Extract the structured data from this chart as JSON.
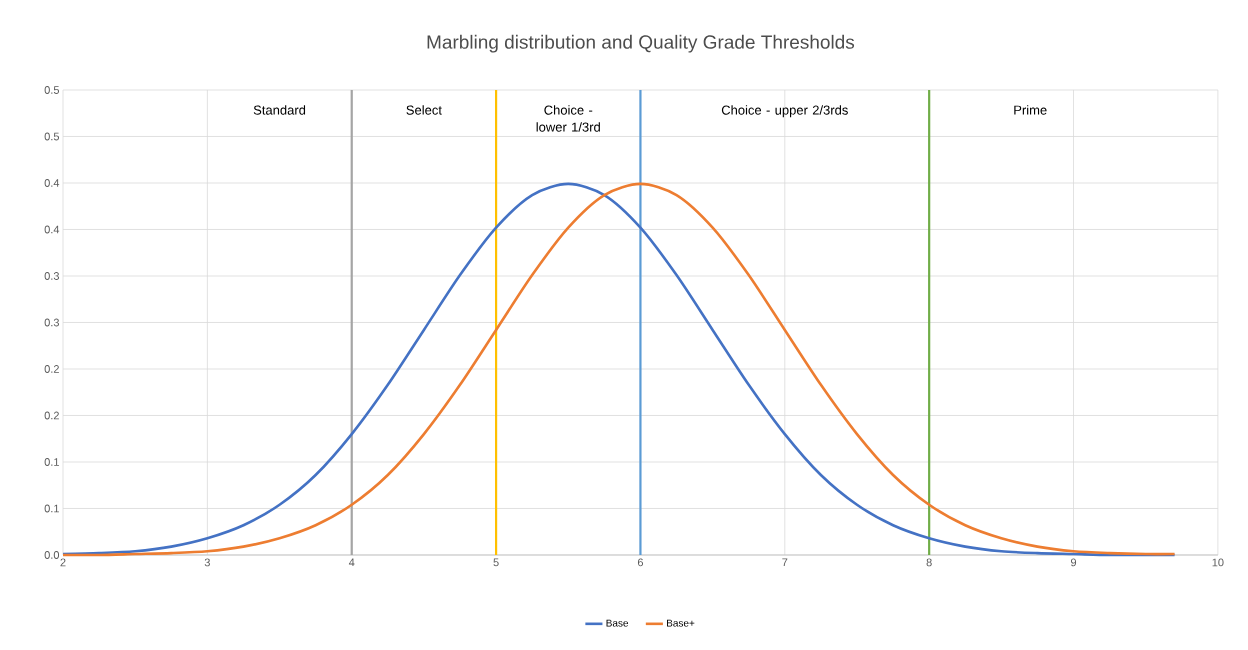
{
  "chart_data": {
    "type": "line",
    "title": "Marbling distribution  and Quality Grade Thresholds",
    "x": [
      2,
      2.25,
      2.5,
      2.75,
      3,
      3.25,
      3.5,
      3.75,
      4,
      4.25,
      4.5,
      4.75,
      5,
      5.25,
      5.5,
      5.75,
      6,
      6.25,
      6.5,
      6.75,
      7,
      7.25,
      7.5,
      7.75,
      8,
      8.25,
      8.5,
      8.75,
      9,
      9.25,
      9.5,
      9.7
    ],
    "series": [
      {
        "name": "Base",
        "color": "#4472c4",
        "values": [
          0.001,
          0.002,
          0.004,
          0.009,
          0.018,
          0.032,
          0.054,
          0.086,
          0.13,
          0.183,
          0.242,
          0.301,
          0.352,
          0.387,
          0.399,
          0.387,
          0.352,
          0.301,
          0.242,
          0.183,
          0.13,
          0.086,
          0.054,
          0.032,
          0.018,
          0.009,
          0.004,
          0.002,
          0.001,
          0,
          0,
          0
        ]
      },
      {
        "name": "Base+",
        "color": "#ed7d31",
        "values": [
          0,
          0,
          0.001,
          0.002,
          0.004,
          0.009,
          0.018,
          0.032,
          0.054,
          0.086,
          0.13,
          0.183,
          0.242,
          0.301,
          0.352,
          0.387,
          0.399,
          0.387,
          0.352,
          0.301,
          0.242,
          0.183,
          0.13,
          0.086,
          0.054,
          0.032,
          0.018,
          0.009,
          0.004,
          0.002,
          0.001,
          0.001
        ]
      }
    ],
    "xlim": [
      2,
      10
    ],
    "xticks": [
      2,
      3,
      4,
      5,
      6,
      7,
      8,
      9,
      10
    ],
    "ylim": [
      0,
      0.5
    ],
    "yticks": [
      {
        "value": 0,
        "label": "0.0"
      },
      {
        "value": 0.05,
        "label": "0.1"
      },
      {
        "value": 0.1,
        "label": "0.1"
      },
      {
        "value": 0.15,
        "label": "0.2"
      },
      {
        "value": 0.2,
        "label": "0.2"
      },
      {
        "value": 0.25,
        "label": "0.3"
      },
      {
        "value": 0.3,
        "label": "0.3"
      },
      {
        "value": 0.35,
        "label": "0.4"
      },
      {
        "value": 0.4,
        "label": "0.4"
      },
      {
        "value": 0.45,
        "label": "0.5"
      },
      {
        "value": 0.5,
        "label": "0.5"
      }
    ],
    "ref_lines": [
      {
        "axis": "x",
        "value": 4,
        "color": "#a5a5a5"
      },
      {
        "axis": "x",
        "value": 5,
        "color": "#ffc000"
      },
      {
        "axis": "x",
        "value": 6,
        "color": "#5b9bd5"
      },
      {
        "axis": "x",
        "value": 8,
        "color": "#70ad47"
      }
    ],
    "annotations": [
      "Standard",
      "Select",
      "Choice - lower 1/3rd",
      "Choice - upper 2/3rds",
      "Prime"
    ],
    "grid": true,
    "legend": "bottom",
    "marker": "none",
    "line_style": "solid"
  }
}
